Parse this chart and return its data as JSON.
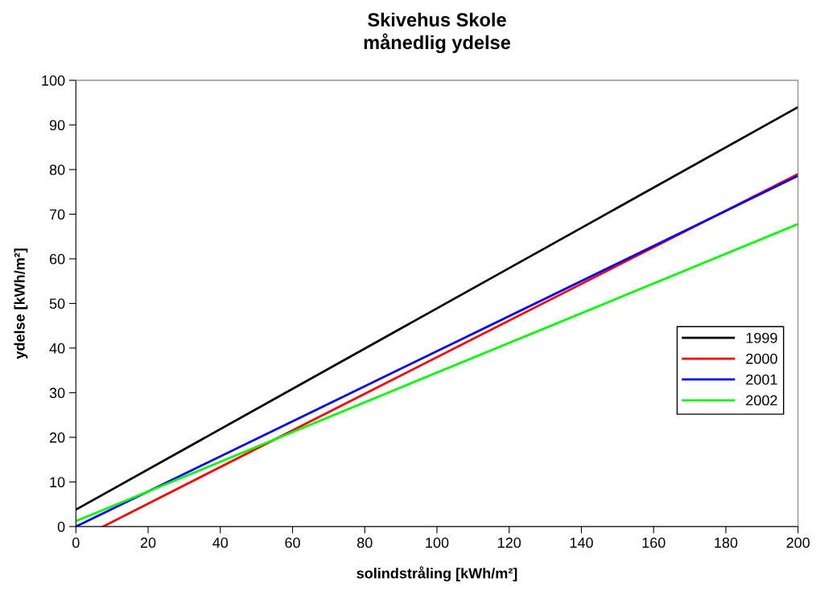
{
  "chart_data": {
    "type": "line",
    "title": "Skivehus Skole\nmånedlig ydelse",
    "xlabel": "solindstråling [kWh/m²]",
    "ylabel": "ydelse [kWh/m²]",
    "xlim": [
      0,
      200
    ],
    "ylim": [
      0,
      100
    ],
    "xticks": [
      0,
      20,
      40,
      60,
      80,
      100,
      120,
      140,
      160,
      180,
      200
    ],
    "yticks": [
      0,
      10,
      20,
      30,
      40,
      50,
      60,
      70,
      80,
      90,
      100
    ],
    "grid": false,
    "legend": "right",
    "marker": "none",
    "line_style": "solid",
    "series": [
      {
        "name": "1999",
        "color": "#000000",
        "x": [
          0,
          200
        ],
        "values": [
          3.8,
          94
        ]
      },
      {
        "name": "2000",
        "color": "#ff0000",
        "x": [
          7.5,
          200
        ],
        "values": [
          0,
          79
        ]
      },
      {
        "name": "2001",
        "color": "#0000ff",
        "x": [
          0,
          200
        ],
        "values": [
          0,
          78.6
        ]
      },
      {
        "name": "2002",
        "color": "#00ff00",
        "x": [
          0,
          200
        ],
        "values": [
          1.2,
          67.8
        ]
      }
    ]
  }
}
